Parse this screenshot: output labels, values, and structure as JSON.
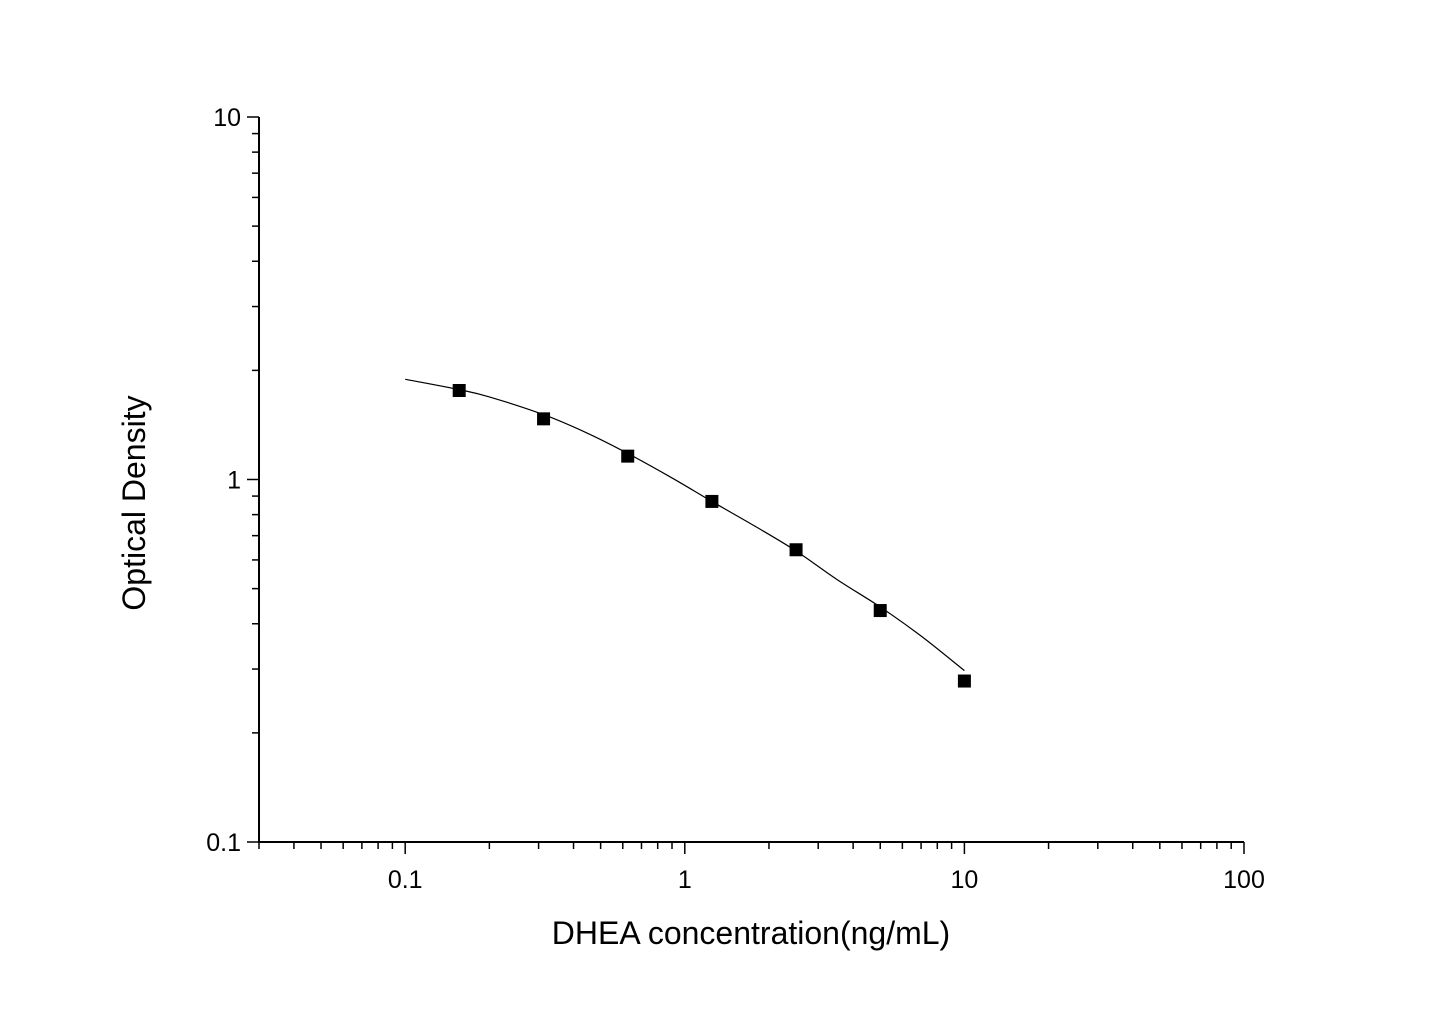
{
  "chart_data": {
    "type": "scatter",
    "xlabel": "DHEA concentration(ng/mL)",
    "ylabel": "Optical Density",
    "x_scale": "log",
    "y_scale": "log",
    "xlim": [
      0.03,
      100
    ],
    "ylim": [
      0.1,
      10
    ],
    "x_tick_labels": [
      {
        "value": 0.1,
        "label": "0.1"
      },
      {
        "value": 1,
        "label": "1"
      },
      {
        "value": 10,
        "label": "10"
      },
      {
        "value": 100,
        "label": "100"
      }
    ],
    "y_tick_labels": [
      {
        "value": 0.1,
        "label": "0.1"
      },
      {
        "value": 1,
        "label": "1"
      },
      {
        "value": 10,
        "label": "10"
      }
    ],
    "grid": false,
    "legend": "none",
    "series": [
      {
        "marker": "square",
        "color": "#000000",
        "points": [
          {
            "x": 0.156,
            "y": 1.76
          },
          {
            "x": 0.3125,
            "y": 1.47
          },
          {
            "x": 0.625,
            "y": 1.16
          },
          {
            "x": 1.25,
            "y": 0.87
          },
          {
            "x": 2.5,
            "y": 0.64
          },
          {
            "x": 5,
            "y": 0.435
          },
          {
            "x": 10,
            "y": 0.278
          }
        ]
      }
    ],
    "fit_curve": {
      "color": "#000000",
      "x": [
        0.1,
        0.156,
        0.2,
        0.3125,
        0.45,
        0.625,
        0.9,
        1.25,
        1.8,
        2.5,
        3.5,
        5,
        7,
        10
      ],
      "y": [
        1.89,
        1.77,
        1.69,
        1.51,
        1.34,
        1.18,
        1.01,
        0.87,
        0.74,
        0.635,
        0.53,
        0.445,
        0.37,
        0.297
      ]
    }
  }
}
